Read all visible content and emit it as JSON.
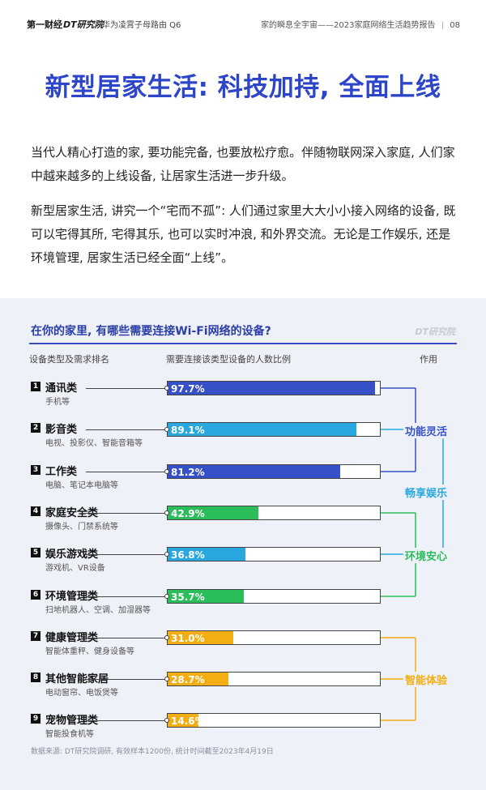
{
  "header": {
    "logo_primary": "第一财经",
    "logo_secondary": "DT研究院",
    "cross": "×",
    "partner": "华为凌霄子母路由 Q6",
    "report": "家的瞬息全宇宙——2023家庭网络生活趋势报告",
    "page": "08"
  },
  "title": "新型居家生活: 科技加持, 全面上线",
  "paragraphs": [
    "当代人精心打造的家, 要功能完备, 也要放松疗愈。伴随物联网深入家庭, 人们家中越来越多的上线设备, 让居家生活进一步升级。",
    "新型居家生活, 讲究一个“宅而不孤”: 人们通过家里大大小小接入网络的设备, 既可以宅得其所, 宅得其乐, 也可以实时冲浪, 和外界交流。无论是工作娱乐, 还是环境管理, 居家生活已经全面“上线”。"
  ],
  "chart_data": {
    "type": "bar",
    "orientation": "horizontal",
    "title": "在你的家里, 有哪些需要连接Wi-Fi网络的设备?",
    "watermark": "DT研究院",
    "column_headers": [
      "设备类型及需求排名",
      "需要连接该类型设备的人数比例",
      "作用"
    ],
    "unit": "%",
    "xlim": [
      0,
      100
    ],
    "rows": [
      {
        "rank": "1",
        "category": "通讯类",
        "examples": "手机等",
        "value": 97.7,
        "label": "97.7%",
        "group": "功能灵活"
      },
      {
        "rank": "2",
        "category": "影音类",
        "examples": "电视、投影仪、智能音箱等",
        "value": 89.1,
        "label": "89.1%",
        "group": "畅享娱乐"
      },
      {
        "rank": "3",
        "category": "工作类",
        "examples": "电脑、笔记本电脑等",
        "value": 81.2,
        "label": "81.2%",
        "group": "功能灵活"
      },
      {
        "rank": "4",
        "category": "家庭安全类",
        "examples": "摄像头、门禁系统等",
        "value": 42.9,
        "label": "42.9%",
        "group": "环境安心"
      },
      {
        "rank": "5",
        "category": "娱乐游戏类",
        "examples": "游戏机、VR设备",
        "value": 36.8,
        "label": "36.8%",
        "group": "畅享娱乐"
      },
      {
        "rank": "6",
        "category": "环境管理类",
        "examples": "扫地机器人、空调、加湿器等",
        "value": 35.7,
        "label": "35.7%",
        "group": "环境安心"
      },
      {
        "rank": "7",
        "category": "健康管理类",
        "examples": "智能体重秤、健身设备等",
        "value": 31.0,
        "label": "31.0%",
        "group": "智能体验"
      },
      {
        "rank": "8",
        "category": "其他智能家居",
        "examples": "电动窗帘、电饭煲等",
        "value": 28.7,
        "label": "28.7%",
        "group": "智能体验"
      },
      {
        "rank": "9",
        "category": "宠物管理类",
        "examples": "智能投食机等",
        "value": 14.6,
        "label": "14.6%",
        "group": "智能体验"
      }
    ],
    "groups": [
      {
        "name": "功能灵活",
        "color": "#3650c8"
      },
      {
        "name": "畅享娱乐",
        "color": "#29a8e0"
      },
      {
        "name": "环境安心",
        "color": "#2bbd5a"
      },
      {
        "name": "智能体验",
        "color": "#f2ae12"
      }
    ],
    "source": "数据来源: DT研究院调研, 有效样本1200份, 统计时间截至2023年4月19日"
  }
}
